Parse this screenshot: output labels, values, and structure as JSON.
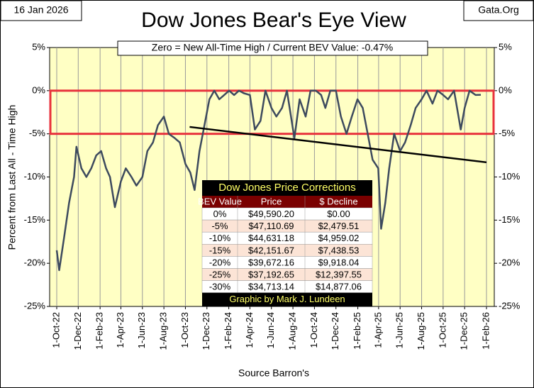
{
  "chart_data": {
    "type": "line",
    "title": "Dow Jones Bear's Eye View",
    "date_label": "16 Jan 2026",
    "source_site": "Gata.Org",
    "annotation": "Zero = New All-Time High / Current BEV Value:  -0.47%",
    "y_label": "Percent from  Last All - Time  High",
    "x_label": "Source Barron's",
    "xlim": [
      "2022-10-01",
      "2026-02-01"
    ],
    "xticks": [
      {
        "value": "2022-10-01",
        "label": "1-Oct-22"
      },
      {
        "value": "2022-12-01",
        "label": "1-Dec-22"
      },
      {
        "value": "2023-02-01",
        "label": "1-Feb-23"
      },
      {
        "value": "2023-04-01",
        "label": "1-Apr-23"
      },
      {
        "value": "2023-06-01",
        "label": "1-Jun-23"
      },
      {
        "value": "2023-08-01",
        "label": "1-Aug-23"
      },
      {
        "value": "2023-10-01",
        "label": "1-Oct-23"
      },
      {
        "value": "2023-12-01",
        "label": "1-Dec-23"
      },
      {
        "value": "2024-02-01",
        "label": "1-Feb-24"
      },
      {
        "value": "2024-04-01",
        "label": "1-Apr-24"
      },
      {
        "value": "2024-06-01",
        "label": "1-Jun-24"
      },
      {
        "value": "2024-08-01",
        "label": "1-Aug-24"
      },
      {
        "value": "2024-10-01",
        "label": "1-Oct-24"
      },
      {
        "value": "2024-12-01",
        "label": "1-Dec-24"
      },
      {
        "value": "2025-02-01",
        "label": "1-Feb-25"
      },
      {
        "value": "2025-04-01",
        "label": "1-Apr-25"
      },
      {
        "value": "2025-06-01",
        "label": "1-Jun-25"
      },
      {
        "value": "2025-08-01",
        "label": "1-Aug-25"
      },
      {
        "value": "2025-10-01",
        "label": "1-Oct-25"
      },
      {
        "value": "2025-12-01",
        "label": "1-Dec-25"
      },
      {
        "value": "2026-02-01",
        "label": "1-Feb-26"
      }
    ],
    "ylim": [
      -25,
      5
    ],
    "yticks": [
      {
        "value": 5,
        "label": "5%"
      },
      {
        "value": 0,
        "label": "0%"
      },
      {
        "value": -5,
        "label": "-5%"
      },
      {
        "value": -10,
        "label": "-10%"
      },
      {
        "value": -15,
        "label": "-15%"
      },
      {
        "value": -20,
        "label": "-20%"
      },
      {
        "value": -25,
        "label": "-25%"
      }
    ],
    "grid": true,
    "highlight_band": [
      -5,
      0
    ],
    "highlight_color": "#e8323c",
    "x": [
      "2022-10-01",
      "2022-10-08",
      "2022-10-22",
      "2022-11-05",
      "2022-11-19",
      "2022-11-26",
      "2022-12-10",
      "2022-12-24",
      "2023-01-07",
      "2023-01-21",
      "2023-02-04",
      "2023-02-18",
      "2023-03-01",
      "2023-03-15",
      "2023-04-01",
      "2023-04-15",
      "2023-05-01",
      "2023-05-15",
      "2023-06-01",
      "2023-06-15",
      "2023-07-01",
      "2023-07-15",
      "2023-08-01",
      "2023-08-15",
      "2023-09-01",
      "2023-09-15",
      "2023-10-01",
      "2023-10-15",
      "2023-10-27",
      "2023-11-10",
      "2023-11-24",
      "2023-12-08",
      "2023-12-22",
      "2024-01-05",
      "2024-01-19",
      "2024-02-02",
      "2024-02-16",
      "2024-03-01",
      "2024-03-15",
      "2024-04-01",
      "2024-04-15",
      "2024-05-01",
      "2024-05-15",
      "2024-06-01",
      "2024-06-15",
      "2024-07-01",
      "2024-07-15",
      "2024-08-05",
      "2024-08-20",
      "2024-09-06",
      "2024-09-20",
      "2024-10-05",
      "2024-10-20",
      "2024-11-01",
      "2024-11-15",
      "2024-12-01",
      "2024-12-15",
      "2024-12-31",
      "2025-01-15",
      "2025-01-31",
      "2025-02-15",
      "2025-03-01",
      "2025-03-15",
      "2025-03-31",
      "2025-04-08",
      "2025-04-20",
      "2025-05-01",
      "2025-05-15",
      "2025-06-01",
      "2025-06-15",
      "2025-07-01",
      "2025-07-15",
      "2025-08-01",
      "2025-08-15",
      "2025-09-01",
      "2025-09-15",
      "2025-10-01",
      "2025-10-15",
      "2025-11-01",
      "2025-11-20",
      "2025-12-01",
      "2025-12-15",
      "2026-01-01",
      "2026-01-16"
    ],
    "series": [
      {
        "name": "BEV",
        "color": "#3d4a5e",
        "values": [
          -18.5,
          -20.8,
          -17,
          -13,
          -10,
          -6.5,
          -9,
          -10,
          -9,
          -7.5,
          -7,
          -9,
          -10,
          -13.5,
          -10.5,
          -9,
          -10,
          -11,
          -10,
          -7,
          -6,
          -4,
          -3,
          -5,
          -5.5,
          -6,
          -8.5,
          -9.5,
          -11.5,
          -7,
          -4,
          -1,
          0,
          -1,
          -0.5,
          0,
          -0.5,
          0,
          -0.3,
          -0.5,
          -4.5,
          -3.5,
          0,
          -2,
          -3,
          -2,
          0,
          -5.5,
          -1,
          -3,
          0,
          0,
          -0.5,
          -2,
          0,
          0,
          -3,
          -5,
          -3,
          -1,
          -2,
          -5,
          -8,
          -9,
          -16,
          -13,
          -9,
          -5,
          -7,
          -6,
          -4,
          -2,
          -1,
          0,
          -1.5,
          0,
          -0.5,
          -1,
          0,
          -4.5,
          -2,
          0,
          -0.5,
          -0.47
        ]
      }
    ],
    "trend_line": {
      "x": [
        "2023-10-13",
        "2026-02-01"
      ],
      "values": [
        -4.2,
        -8.3
      ],
      "color": "#000000"
    },
    "table": {
      "title": "Dow Jones Price Corrections",
      "headers": [
        "BEV Value",
        "Price",
        "$ Decline"
      ],
      "rows": [
        [
          "0%",
          "$49,590.20",
          "$0.00"
        ],
        [
          "-5%",
          "$47,110.69",
          "$2,479.51"
        ],
        [
          "-10%",
          "$44,631.18",
          "$4,959.02"
        ],
        [
          "-15%",
          "$42,151.67",
          "$7,438.53"
        ],
        [
          "-20%",
          "$39,672.16",
          "$9,918.04"
        ],
        [
          "-25%",
          "$37,192.65",
          "$12,397.55"
        ],
        [
          "-30%",
          "$34,713.14",
          "$14,877.06"
        ]
      ],
      "footer": "Graphic by Mark J. Lundeen"
    }
  }
}
